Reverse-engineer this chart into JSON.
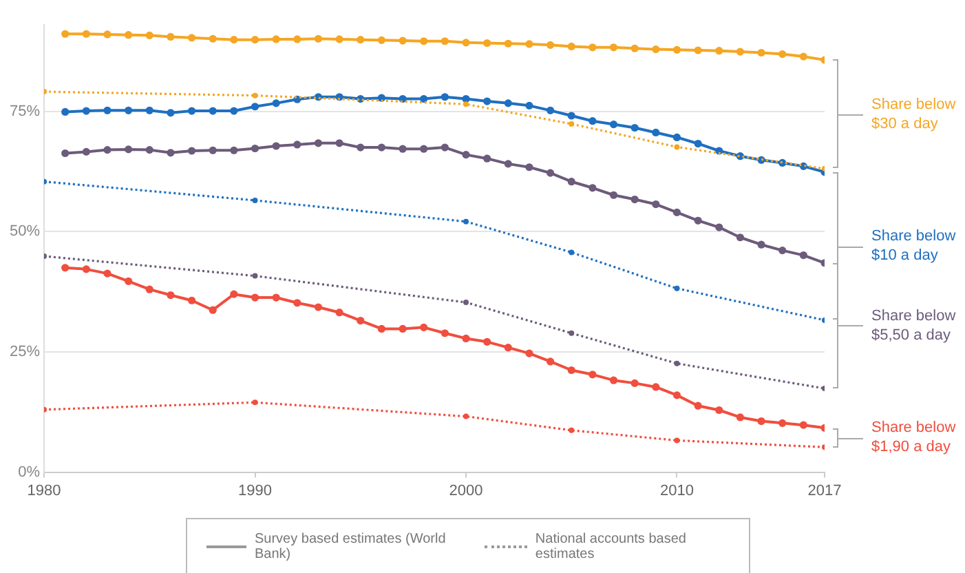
{
  "chart_data": {
    "type": "line",
    "xlim": [
      1980,
      2017
    ],
    "xticks": [
      1980,
      1990,
      2000,
      2010,
      2017
    ],
    "ylim": [
      0,
      93
    ],
    "yticks": [
      {
        "value": 0,
        "label": "0%"
      },
      {
        "value": 25,
        "label": "25%"
      },
      {
        "value": 50,
        "label": "50%"
      },
      {
        "value": 75,
        "label": "75%"
      }
    ],
    "grid": "y",
    "marker": "circle",
    "series": [
      {
        "name": "Share below $30 a day",
        "color": "#f5a623",
        "line_style": "solid",
        "x": [
          1981,
          1982,
          1983,
          1984,
          1985,
          1986,
          1987,
          1988,
          1989,
          1990,
          1991,
          1992,
          1993,
          1994,
          1995,
          1996,
          1997,
          1998,
          1999,
          2000,
          2001,
          2002,
          2003,
          2004,
          2005,
          2006,
          2007,
          2008,
          2009,
          2010,
          2011,
          2012,
          2013,
          2014,
          2015,
          2016,
          2017
        ],
        "values": [
          91.1,
          91.1,
          91,
          90.9,
          90.8,
          90.5,
          90.3,
          90.1,
          89.9,
          89.9,
          90,
          90,
          90.1,
          90,
          89.9,
          89.8,
          89.7,
          89.6,
          89.6,
          89.3,
          89.2,
          89.1,
          89,
          88.8,
          88.5,
          88.3,
          88.3,
          88.1,
          87.9,
          87.8,
          87.7,
          87.6,
          87.4,
          87.2,
          86.9,
          86.4,
          85.7
        ]
      },
      {
        "color": "#f5a623",
        "line_style": "dotted",
        "x": [
          1980,
          1990,
          2000,
          2005,
          2010,
          2017
        ],
        "values": [
          79.1,
          78.3,
          76.5,
          72.4,
          67.6,
          63.1
        ]
      },
      {
        "name": "Share below $10 a day",
        "color": "#1f6fc0",
        "line_style": "solid",
        "x": [
          1981,
          1982,
          1983,
          1984,
          1985,
          1986,
          1987,
          1988,
          1989,
          1990,
          1991,
          1992,
          1993,
          1994,
          1995,
          1996,
          1997,
          1998,
          1999,
          2000,
          2001,
          2002,
          2003,
          2004,
          2005,
          2006,
          2007,
          2008,
          2009,
          2010,
          2011,
          2012,
          2013,
          2014,
          2015,
          2016,
          2017
        ],
        "values": [
          74.9,
          75.1,
          75.2,
          75.2,
          75.2,
          74.7,
          75.1,
          75.1,
          75.1,
          76,
          76.7,
          77.5,
          78,
          78,
          77.6,
          77.8,
          77.6,
          77.6,
          78,
          77.6,
          77.1,
          76.7,
          76.2,
          75.2,
          74.1,
          73,
          72.3,
          71.6,
          70.6,
          69.6,
          68.3,
          66.8,
          65.7,
          64.9,
          64.3,
          63.6,
          62.4
        ]
      },
      {
        "color": "#1f6fc0",
        "line_style": "dotted",
        "x": [
          1980,
          1990,
          2000,
          2005,
          2010,
          2017
        ],
        "values": [
          60.4,
          56.5,
          52.1,
          45.7,
          38.2,
          31.6
        ]
      },
      {
        "name": "Share below $5,50 a day",
        "color": "#6c5b7b",
        "line_style": "solid",
        "x": [
          1981,
          1982,
          1983,
          1984,
          1985,
          1986,
          1987,
          1988,
          1989,
          1990,
          1991,
          1992,
          1993,
          1994,
          1995,
          1996,
          1997,
          1998,
          1999,
          2000,
          2001,
          2002,
          2003,
          2004,
          2005,
          2006,
          2007,
          2008,
          2009,
          2010,
          2011,
          2012,
          2013,
          2014,
          2015,
          2016,
          2017
        ],
        "values": [
          66.3,
          66.6,
          67,
          67.1,
          67,
          66.4,
          66.8,
          66.9,
          66.9,
          67.3,
          67.8,
          68.1,
          68.4,
          68.4,
          67.5,
          67.5,
          67.2,
          67.2,
          67.5,
          66,
          65.2,
          64.1,
          63.4,
          62.2,
          60.4,
          59.1,
          57.6,
          56.7,
          55.7,
          54,
          52.3,
          50.9,
          48.8,
          47.3,
          46.1,
          45.1,
          43.5
        ]
      },
      {
        "color": "#6c5b7b",
        "line_style": "dotted",
        "x": [
          1980,
          1990,
          2000,
          2005,
          2010,
          2017
        ],
        "values": [
          44.9,
          40.8,
          35.3,
          28.9,
          22.6,
          17.4
        ]
      },
      {
        "name": "Share below $1,90 a day",
        "color": "#f04e3e",
        "line_style": "solid",
        "x": [
          1981,
          1982,
          1983,
          1984,
          1985,
          1986,
          1987,
          1988,
          1989,
          1990,
          1991,
          1992,
          1993,
          1994,
          1995,
          1996,
          1997,
          1998,
          1999,
          2000,
          2001,
          2002,
          2003,
          2004,
          2005,
          2006,
          2007,
          2008,
          2009,
          2010,
          2011,
          2012,
          2013,
          2014,
          2015,
          2016,
          2017
        ],
        "values": [
          42.5,
          42.2,
          41.3,
          39.7,
          38,
          36.8,
          35.7,
          33.7,
          37,
          36.3,
          36.3,
          35.2,
          34.3,
          33.2,
          31.5,
          29.8,
          29.8,
          30.1,
          28.9,
          27.8,
          27.1,
          25.9,
          24.7,
          23,
          21.2,
          20.3,
          19.1,
          18.5,
          17.7,
          16,
          13.8,
          12.9,
          11.4,
          10.6,
          10.2,
          9.8,
          9.2
        ]
      },
      {
        "color": "#f04e3e",
        "line_style": "dotted",
        "x": [
          1980,
          1990,
          2000,
          2005,
          2010,
          2017
        ],
        "values": [
          13,
          14.5,
          11.6,
          8.7,
          6.6,
          5.2
        ]
      }
    ],
    "annotations": [
      "Survey based estimates (World Bank)",
      "National accounts based estimates"
    ]
  }
}
